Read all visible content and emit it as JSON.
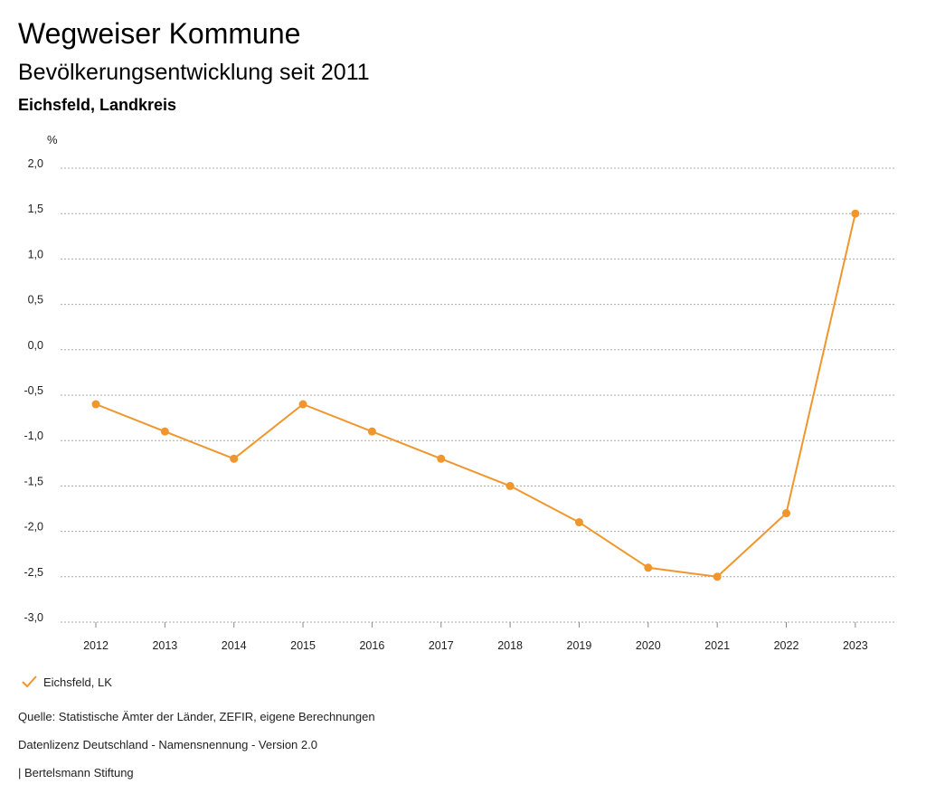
{
  "header": {
    "title": "Wegweiser Kommune",
    "subtitle": "Bevölkerungsentwicklung seit 2011",
    "region": "Eichsfeld, Landkreis"
  },
  "chart_data": {
    "type": "line",
    "ylabel": "%",
    "xlabel": "",
    "ylim": [
      -3.0,
      2.0
    ],
    "yticks": [
      "2,0",
      "1,5",
      "1,0",
      "0,5",
      "0,0",
      "-0,5",
      "-1,0",
      "-1,5",
      "-2,0",
      "-2,5",
      "-3,0"
    ],
    "ytick_values": [
      2.0,
      1.5,
      1.0,
      0.5,
      0.0,
      -0.5,
      -1.0,
      -1.5,
      -2.0,
      -2.5,
      -3.0
    ],
    "categories": [
      "2012",
      "2013",
      "2014",
      "2015",
      "2016",
      "2017",
      "2018",
      "2019",
      "2020",
      "2021",
      "2022",
      "2023"
    ],
    "series": [
      {
        "name": "Eichsfeld, LK",
        "color": "#f0962d",
        "values": [
          -0.6,
          -0.9,
          -1.2,
          -0.6,
          -0.9,
          -1.2,
          -1.5,
          -1.9,
          -2.4,
          -2.5,
          -1.8,
          1.5
        ]
      }
    ],
    "grid": true,
    "legend_position": "bottom-left"
  },
  "footer": {
    "source": "Quelle: Statistische Ämter der Länder, ZEFIR, eigene Berechnungen",
    "license": "Datenlizenz Deutschland - Namensnennung - Version 2.0",
    "publisher": "| Bertelsmann Stiftung"
  }
}
